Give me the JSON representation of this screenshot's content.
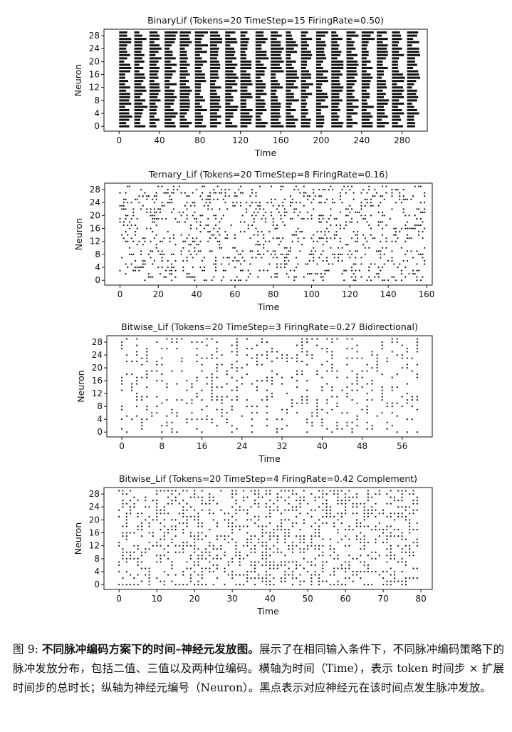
{
  "figure": {
    "caption_label": "图 9: ",
    "caption_bold": "不同脉冲编码方案下的时间–神经元发放图。",
    "caption_text": "展示了在相同输入条件下，不同脉冲编码策略下的脉冲发放分布，包括二值、三值以及两种位编码。横轴为时间（Time），表示 token 时间步 × 扩展时间步的总时长；纵轴为神经元编号（Neuron）。黑点表示对应神经元在该时间点发生脉冲发放。"
  },
  "chart_data": [
    {
      "type": "scatter",
      "title": "BinaryLif (Tokens=20 TimeStep=15 FiringRate=0.50)",
      "xlabel": "Time",
      "ylabel": "Neuron",
      "tokens": 20,
      "timestep": 15,
      "firing_rate": 0.5,
      "marker": "dash",
      "xlim": [
        -15,
        305
      ],
      "ylim": [
        -1.5,
        30
      ],
      "xticks": [
        0,
        40,
        80,
        120,
        160,
        200,
        240,
        280
      ],
      "yticks": [
        0,
        4,
        8,
        12,
        16,
        20,
        24,
        28
      ],
      "grid": false
    },
    {
      "type": "scatter",
      "title": "Ternary_Lif (Tokens=20 TimeStep=8 FiringRate=0.16)",
      "xlabel": "Time",
      "ylabel": "Neuron",
      "tokens": 20,
      "timestep": 8,
      "firing_rate": 0.16,
      "marker": "dot",
      "xlim": [
        -8,
        163
      ],
      "ylim": [
        -1.5,
        30
      ],
      "xticks": [
        0,
        20,
        40,
        60,
        80,
        100,
        120,
        140,
        160
      ],
      "yticks": [
        0,
        4,
        8,
        12,
        16,
        20,
        24,
        28
      ],
      "grid": false
    },
    {
      "type": "scatter",
      "title": "Bitwise_Lif (Tokens=20 TimeStep=3 FiringRate=0.27 Bidirectional)",
      "xlabel": "Time",
      "ylabel": "Neuron",
      "tokens": 20,
      "timestep": 3,
      "firing_rate": 0.27,
      "marker": "dot",
      "xlim": [
        -3,
        62
      ],
      "ylim": [
        -1.5,
        30
      ],
      "xticks": [
        0,
        8,
        16,
        24,
        32,
        40,
        48,
        56
      ],
      "yticks": [
        0,
        4,
        8,
        12,
        16,
        20,
        24,
        28
      ],
      "grid": false
    },
    {
      "type": "scatter",
      "title": "Bitwise_Lif (Tokens=20 TimeStep=4 FiringRate=0.42 Complement)",
      "xlabel": "Time",
      "ylabel": "Neuron",
      "tokens": 20,
      "timestep": 4,
      "firing_rate": 0.42,
      "marker": "dot",
      "xlim": [
        -4,
        83
      ],
      "ylim": [
        -1.5,
        30
      ],
      "xticks": [
        0,
        10,
        20,
        30,
        40,
        50,
        60,
        70,
        80
      ],
      "yticks": [
        0,
        4,
        8,
        12,
        16,
        20,
        24,
        28
      ],
      "grid": false
    }
  ]
}
